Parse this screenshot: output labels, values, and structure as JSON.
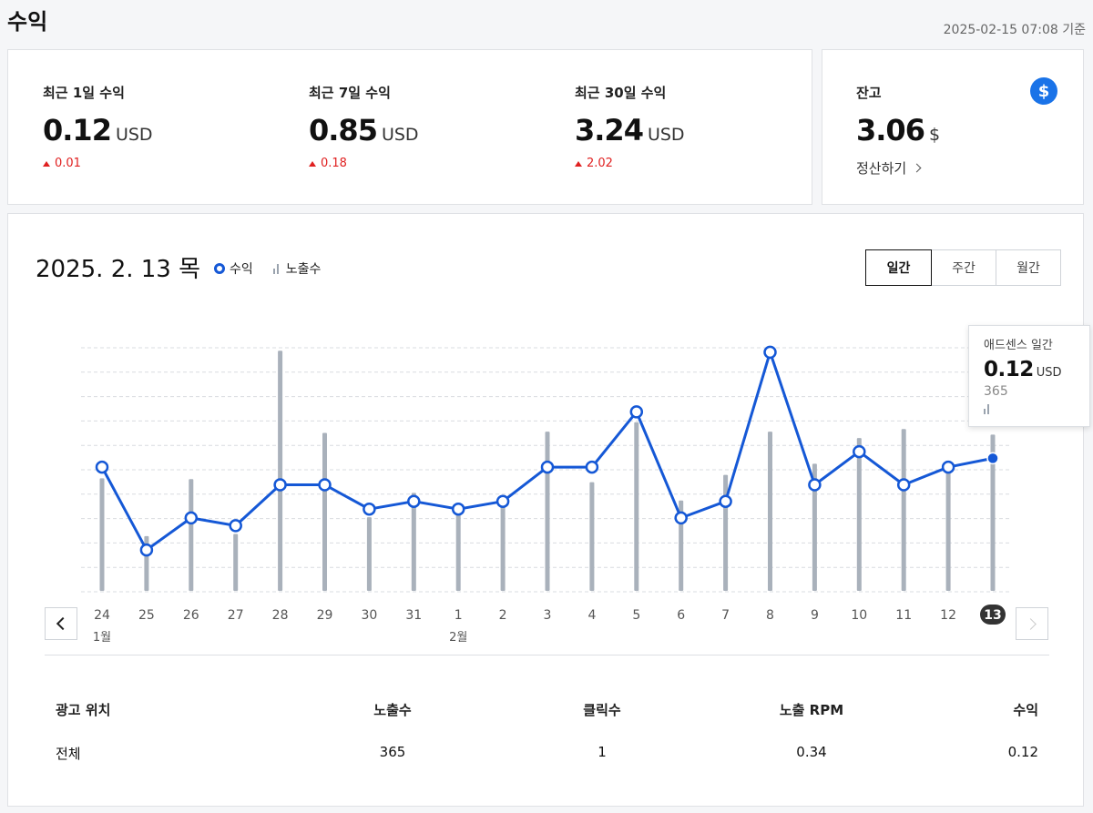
{
  "header": {
    "title": "수익",
    "as_of": "2025-02-15 07:08 기준"
  },
  "stats": [
    {
      "label": "최근 1일 수익",
      "value": "0.12",
      "unit": "USD",
      "delta": "0.01"
    },
    {
      "label": "최근 7일 수익",
      "value": "0.85",
      "unit": "USD",
      "delta": "0.18"
    },
    {
      "label": "최근 30일 수익",
      "value": "3.24",
      "unit": "USD",
      "delta": "2.02"
    }
  ],
  "balance": {
    "label": "잔고",
    "value": "3.06",
    "unit": "$",
    "settle_label": "정산하기",
    "icon": "dollar-icon"
  },
  "chart": {
    "date_title": "2025. 2. 13 목",
    "legend_revenue": "수익",
    "legend_impressions": "노출수",
    "periods": [
      {
        "label": "일간",
        "active": true
      },
      {
        "label": "주간",
        "active": false
      },
      {
        "label": "월간",
        "active": false
      }
    ],
    "accent_color": "#1558d6",
    "bar_color": "#a9b1bb"
  },
  "tooltip": {
    "title": "애드센스 일간",
    "value": "0.12",
    "unit": "USD",
    "impressions": "365"
  },
  "chart_data": {
    "type": "line",
    "categories": [
      "24",
      "25",
      "26",
      "27",
      "28",
      "29",
      "30",
      "31",
      "1",
      "2",
      "3",
      "4",
      "5",
      "6",
      "7",
      "8",
      "9",
      "10",
      "11",
      "12",
      "13"
    ],
    "month_labels": [
      {
        "index": 0,
        "label": "1월"
      },
      {
        "index": 8,
        "label": "2월"
      }
    ],
    "selected_index": 20,
    "series": [
      {
        "name": "수익",
        "values": [
          0.112,
          0.037,
          0.066,
          0.059,
          0.096,
          0.096,
          0.074,
          0.081,
          0.074,
          0.081,
          0.112,
          0.112,
          0.162,
          0.066,
          0.081,
          0.216,
          0.096,
          0.126,
          0.096,
          0.112,
          0.12
        ]
      },
      {
        "name": "노출수",
        "values": [
          263,
          128,
          261,
          133,
          561,
          369,
          172,
          229,
          204,
          196,
          372,
          254,
          394,
          211,
          271,
          372,
          297,
          357,
          378,
          297,
          365
        ]
      }
    ],
    "y_revenue_range": [
      0,
      0.234
    ],
    "y_impressions_range": [
      0,
      604
    ],
    "grid": true
  },
  "table": {
    "headers": [
      "광고 위치",
      "노출수",
      "클릭수",
      "노출 RPM",
      "수익"
    ],
    "rows": [
      [
        "전체",
        "365",
        "1",
        "0.34",
        "0.12"
      ]
    ]
  }
}
